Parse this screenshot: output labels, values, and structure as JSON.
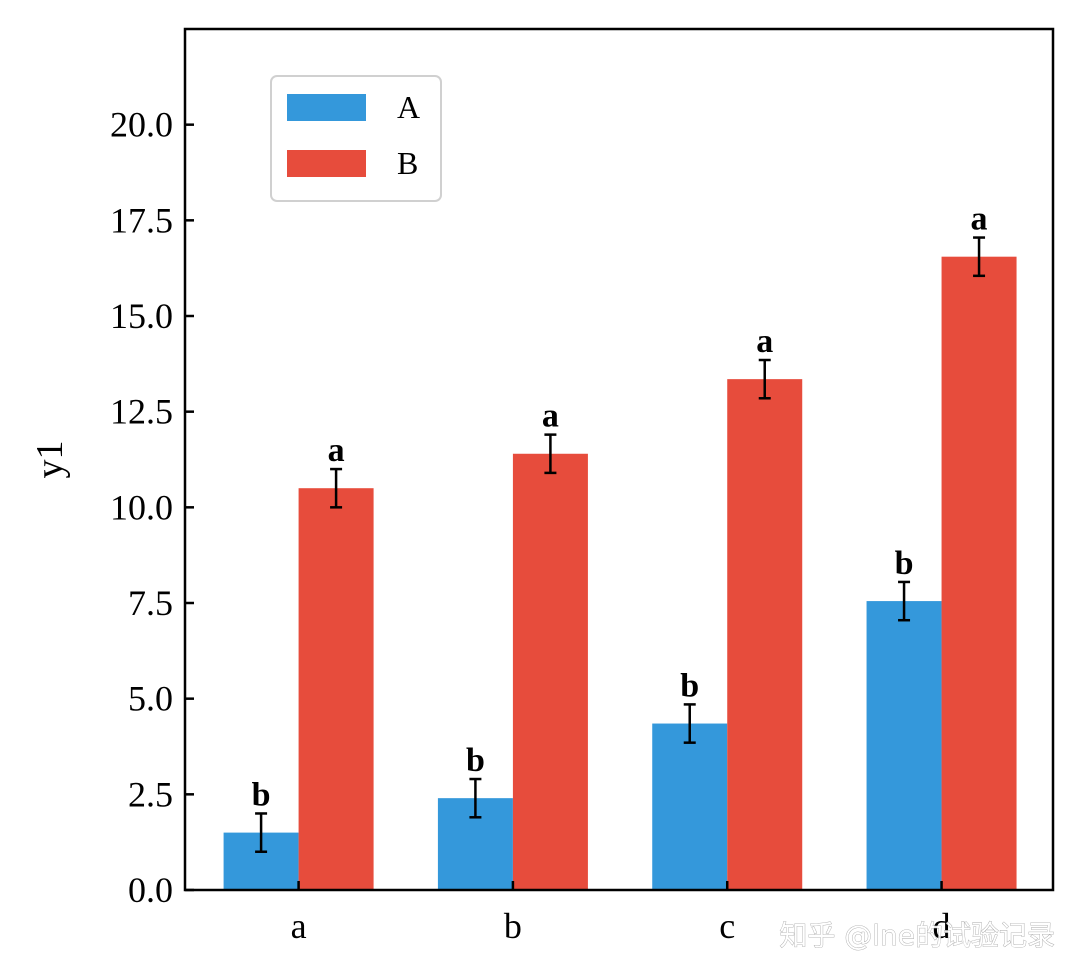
{
  "chart_data": {
    "type": "bar",
    "categories": [
      "a",
      "b",
      "c",
      "d"
    ],
    "series": [
      {
        "name": "A",
        "color": "#3498db",
        "values": [
          1.5,
          2.4,
          4.35,
          7.55
        ],
        "errors": [
          0.5,
          0.5,
          0.5,
          0.5
        ],
        "letters": [
          "b",
          "b",
          "b",
          "b"
        ]
      },
      {
        "name": "B",
        "color": "#e74c3c",
        "values": [
          10.5,
          11.4,
          13.35,
          16.55
        ],
        "errors": [
          0.5,
          0.5,
          0.5,
          0.5
        ],
        "letters": [
          "a",
          "a",
          "a",
          "a"
        ]
      }
    ],
    "ylabel": "y1",
    "ylim": [
      0,
      22.5
    ],
    "yticks": [
      0,
      2.5,
      5,
      7.5,
      10,
      12.5,
      15,
      17.5,
      20
    ],
    "ytick_labels": [
      "0.0",
      "2.5",
      "5.0",
      "7.5",
      "10.0",
      "12.5",
      "15.0",
      "17.5",
      "20.0"
    ],
    "grid": false,
    "legend": {
      "position": "top-left",
      "entries": [
        "A",
        "B"
      ]
    }
  },
  "watermark": "知乎 @lne的试验记录"
}
